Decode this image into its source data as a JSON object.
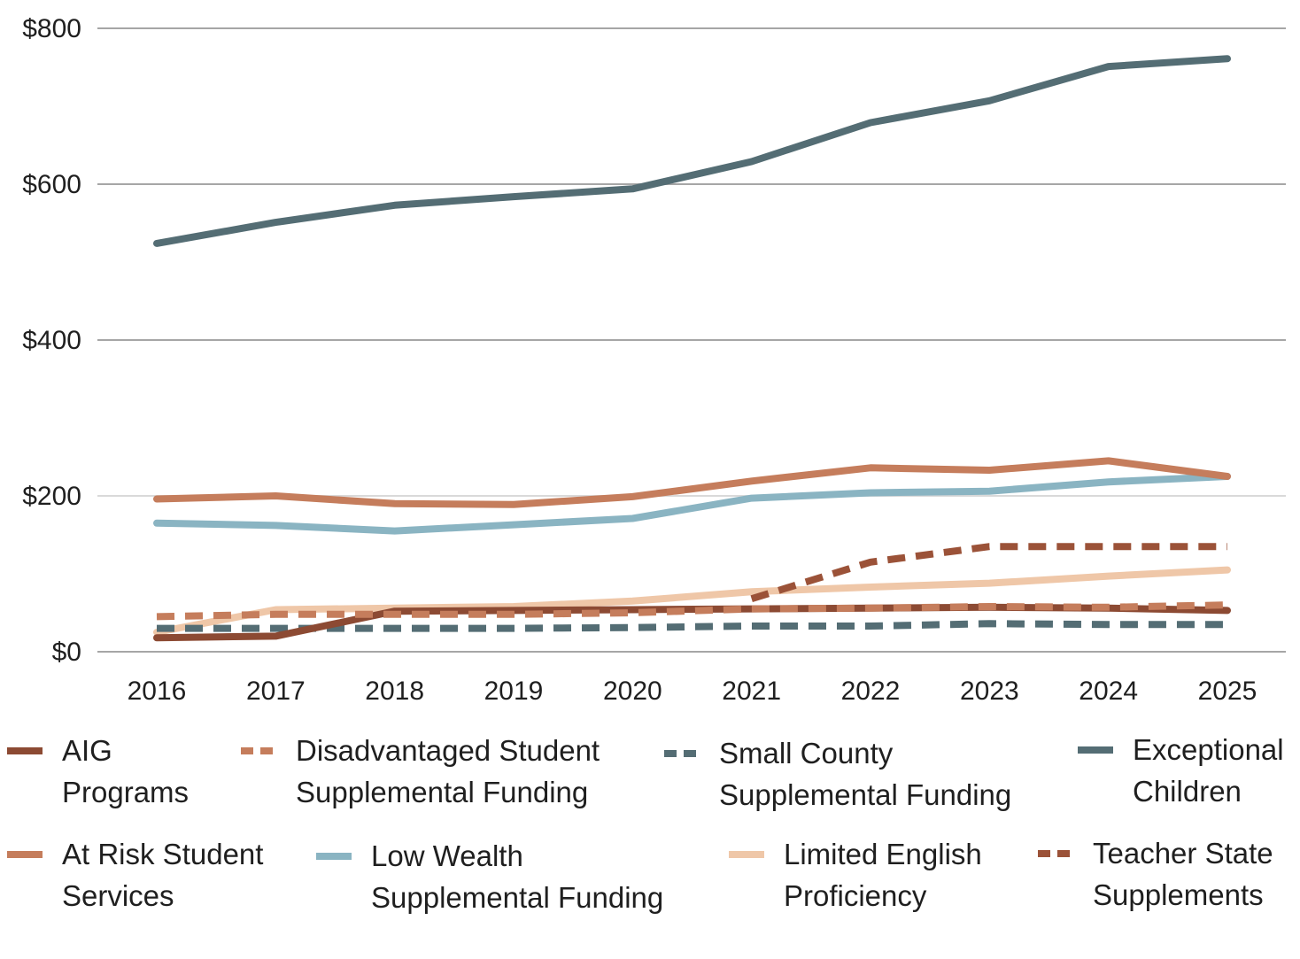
{
  "chart_data": {
    "type": "line",
    "title": "",
    "xlabel": "",
    "ylabel": "",
    "categories": [
      "2016",
      "2017",
      "2018",
      "2019",
      "2020",
      "2021",
      "2022",
      "2023",
      "2024",
      "2025"
    ],
    "ylim": [
      0,
      800
    ],
    "yticks": [
      {
        "value": 0,
        "label": "$0"
      },
      {
        "value": 200,
        "label": "$200"
      },
      {
        "value": 400,
        "label": "$400"
      },
      {
        "value": 600,
        "label": "$600"
      },
      {
        "value": 800,
        "label": "$800"
      }
    ],
    "grid": true,
    "legend_position": "bottom",
    "series": [
      {
        "name": "AIG Programs",
        "legend_lines": [
          "AIG",
          "Programs"
        ],
        "color": "#8c4a33",
        "dashed": false,
        "values": [
          18,
          20,
          52,
          53,
          54,
          55,
          56,
          57,
          56,
          53
        ]
      },
      {
        "name": "Disadvantaged Student Supplemental Funding",
        "legend_lines": [
          "Disadvantaged Student",
          "Supplemental Funding"
        ],
        "color": "#c57d5c",
        "dashed": true,
        "values": [
          45,
          48,
          48,
          48,
          50,
          55,
          56,
          58,
          57,
          60
        ]
      },
      {
        "name": "Small County Supplemental Funding",
        "legend_lines": [
          "Small County",
          "Supplemental Funding"
        ],
        "color": "#546d74",
        "dashed": true,
        "values": [
          30,
          30,
          30,
          30,
          31,
          33,
          33,
          36,
          35,
          35
        ]
      },
      {
        "name": "Exceptional Children",
        "legend_lines": [
          "Exceptional",
          "Children"
        ],
        "color": "#546d74",
        "dashed": false,
        "values": [
          524,
          551,
          573,
          584,
          594,
          629,
          679,
          707,
          751,
          761
        ]
      },
      {
        "name": "At Risk Student Services",
        "legend_lines": [
          "At Risk Student",
          "Services"
        ],
        "color": "#c57d5c",
        "dashed": false,
        "values": [
          196,
          200,
          190,
          189,
          199,
          219,
          236,
          233,
          245,
          225
        ]
      },
      {
        "name": "Low Wealth Supplemental Funding",
        "legend_lines": [
          "Low Wealth",
          "Supplemental Funding"
        ],
        "color": "#8ab4c2",
        "dashed": false,
        "values": [
          165,
          162,
          155,
          163,
          171,
          197,
          204,
          206,
          218,
          225
        ]
      },
      {
        "name": "Limited English Proficiency",
        "legend_lines": [
          "Limited English",
          "Proficiency"
        ],
        "color": "#efc7a8",
        "dashed": false,
        "values": [
          25,
          54,
          56,
          58,
          65,
          77,
          83,
          88,
          97,
          105
        ]
      },
      {
        "name": "Teacher State Supplements",
        "legend_lines": [
          "Teacher State",
          "Supplements"
        ],
        "color": "#9b5238",
        "dashed": true,
        "values": [
          null,
          null,
          null,
          null,
          null,
          68,
          115,
          135,
          135,
          135
        ]
      }
    ]
  }
}
